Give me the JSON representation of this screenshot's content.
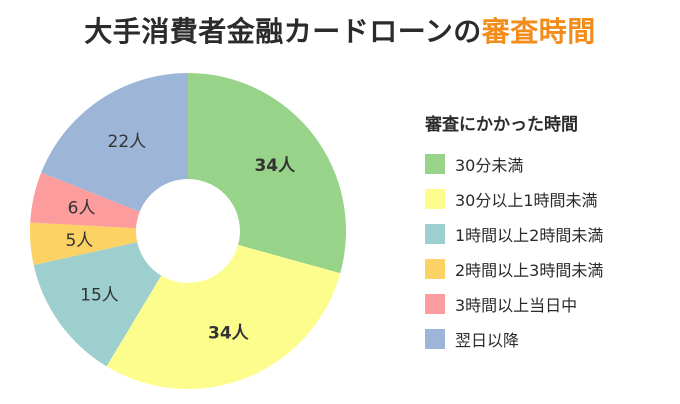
{
  "title": {
    "main": "大手消費者金融カードローンの",
    "accent": "審査時間"
  },
  "colors": {
    "title_accent": "#f28c1b"
  },
  "legend": {
    "title": "審査にかかった時間"
  },
  "chart_data": {
    "type": "pie",
    "variant": "donut",
    "unit_suffix": "人",
    "categories": [
      "30分未満",
      "30分以上1時間未満",
      "1時間以上2時間未満",
      "2時間以上3時間未満",
      "3時間以上当日中",
      "翌日以降"
    ],
    "values": [
      34,
      34,
      15,
      5,
      6,
      22
    ],
    "labels": [
      "34人",
      "34人",
      "15人",
      "5人",
      "6人",
      "22人"
    ],
    "colors": [
      "#98d38a",
      "#fdfd8e",
      "#9ccfcd",
      "#fdd264",
      "#fd9c9c",
      "#9db6d8"
    ],
    "start_angle_deg": 0,
    "direction": "clockwise",
    "legend_position": "right"
  }
}
